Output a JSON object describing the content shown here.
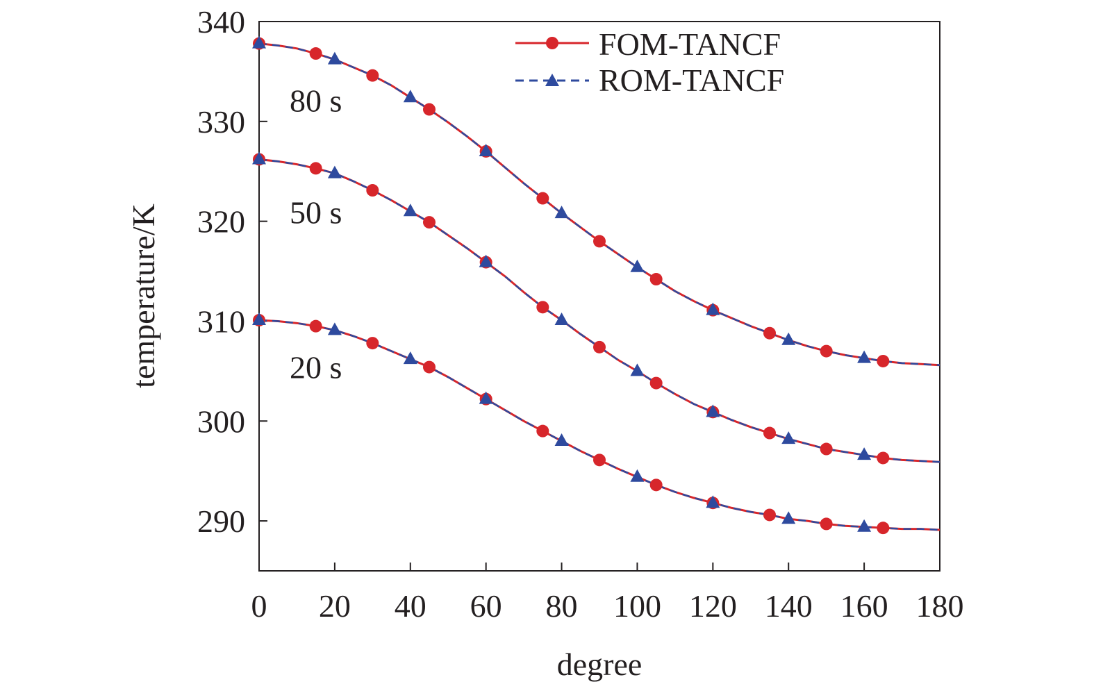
{
  "chart_data": {
    "type": "line",
    "xlabel": "degree",
    "ylabel": "temperature/K",
    "xlim": [
      0,
      180
    ],
    "ylim": [
      285,
      340
    ],
    "xticks": [
      "0",
      "20",
      "40",
      "60",
      "80",
      "100",
      "120",
      "140",
      "160",
      "180"
    ],
    "yticks": [
      "340",
      "330",
      "320",
      "310",
      "300",
      "290"
    ],
    "grid": false,
    "legend_position": "top-right",
    "colors": {
      "fom": "#d7262b",
      "rom": "#2e4a9e",
      "axis": "#231f20"
    },
    "annotations": [
      {
        "text": "80 s",
        "x": 15,
        "y": 331
      },
      {
        "text": "50 s",
        "x": 15,
        "y": 319.8
      },
      {
        "text": "20 s",
        "x": 15,
        "y": 304.3
      }
    ],
    "legend": [
      {
        "label": "FOM-TANCF",
        "marker": "circle",
        "line": "solid"
      },
      {
        "label": "ROM-TANCF",
        "marker": "triangle",
        "line": "dashed"
      }
    ],
    "curves": [
      {
        "time": "80 s",
        "x": [
          0,
          5,
          10,
          15,
          20,
          25,
          30,
          35,
          40,
          45,
          50,
          55,
          60,
          65,
          70,
          75,
          80,
          85,
          90,
          95,
          100,
          105,
          110,
          115,
          120,
          125,
          130,
          135,
          140,
          145,
          150,
          155,
          160,
          165,
          170,
          175,
          180
        ],
        "y": [
          337.8,
          337.6,
          337.3,
          336.8,
          336.2,
          335.4,
          334.6,
          333.6,
          332.4,
          331.2,
          329.9,
          328.5,
          327.0,
          325.4,
          323.8,
          322.3,
          320.8,
          319.4,
          318.0,
          316.7,
          315.4,
          314.2,
          313.0,
          312.0,
          311.1,
          310.3,
          309.5,
          308.8,
          308.1,
          307.5,
          307.0,
          306.6,
          306.3,
          306.0,
          305.8,
          305.7,
          305.6
        ]
      },
      {
        "time": "50 s",
        "x": [
          0,
          5,
          10,
          15,
          20,
          25,
          30,
          35,
          40,
          45,
          50,
          55,
          60,
          65,
          70,
          75,
          80,
          85,
          90,
          95,
          100,
          105,
          110,
          115,
          120,
          125,
          130,
          135,
          140,
          145,
          150,
          155,
          160,
          165,
          170,
          175,
          180
        ],
        "y": [
          326.2,
          326.0,
          325.7,
          325.3,
          324.8,
          324.0,
          323.1,
          322.1,
          321.0,
          319.9,
          318.6,
          317.3,
          315.9,
          314.5,
          312.9,
          311.4,
          310.1,
          308.7,
          307.4,
          306.1,
          305.0,
          303.8,
          302.7,
          301.7,
          300.9,
          300.1,
          299.4,
          298.8,
          298.2,
          297.7,
          297.2,
          296.9,
          296.6,
          296.3,
          296.1,
          296.0,
          295.9
        ]
      },
      {
        "time": "20 s",
        "x": [
          0,
          5,
          10,
          15,
          20,
          25,
          30,
          35,
          40,
          45,
          50,
          55,
          60,
          65,
          70,
          75,
          80,
          85,
          90,
          95,
          100,
          105,
          110,
          115,
          120,
          125,
          130,
          135,
          140,
          145,
          150,
          155,
          160,
          165,
          170,
          175,
          180
        ],
        "y": [
          310.1,
          310.0,
          309.8,
          309.5,
          309.1,
          308.5,
          307.8,
          307.0,
          306.2,
          305.4,
          304.4,
          303.3,
          302.2,
          301.1,
          300.0,
          299.0,
          298.0,
          297.0,
          296.1,
          295.2,
          294.4,
          293.6,
          292.9,
          292.3,
          291.8,
          291.3,
          290.9,
          290.6,
          290.2,
          290.0,
          289.7,
          289.5,
          289.4,
          289.3,
          289.2,
          289.2,
          289.1
        ]
      }
    ],
    "series": [
      {
        "name": "FOM-TANCF",
        "marker": "circle",
        "points": [
          [
            0,
            337.8
          ],
          [
            15,
            336.8
          ],
          [
            30,
            334.6
          ],
          [
            45,
            331.2
          ],
          [
            60,
            327.0
          ],
          [
            75,
            322.3
          ],
          [
            90,
            318.0
          ],
          [
            105,
            314.2
          ],
          [
            120,
            311.1
          ],
          [
            135,
            308.8
          ],
          [
            150,
            307.0
          ],
          [
            165,
            306.0
          ],
          [
            0,
            326.2
          ],
          [
            15,
            325.3
          ],
          [
            30,
            323.1
          ],
          [
            45,
            319.9
          ],
          [
            60,
            315.9
          ],
          [
            75,
            311.4
          ],
          [
            90,
            307.4
          ],
          [
            105,
            303.8
          ],
          [
            120,
            300.9
          ],
          [
            135,
            298.8
          ],
          [
            150,
            297.2
          ],
          [
            165,
            296.3
          ],
          [
            0,
            310.1
          ],
          [
            15,
            309.5
          ],
          [
            30,
            307.8
          ],
          [
            45,
            305.4
          ],
          [
            60,
            302.2
          ],
          [
            75,
            299.0
          ],
          [
            90,
            296.1
          ],
          [
            105,
            293.6
          ],
          [
            120,
            291.8
          ],
          [
            135,
            290.6
          ],
          [
            150,
            289.7
          ],
          [
            165,
            289.3
          ]
        ]
      },
      {
        "name": "ROM-TANCF",
        "marker": "triangle",
        "points": [
          [
            0,
            337.8
          ],
          [
            20,
            336.2
          ],
          [
            40,
            332.4
          ],
          [
            60,
            327.0
          ],
          [
            80,
            320.8
          ],
          [
            100,
            315.4
          ],
          [
            120,
            311.1
          ],
          [
            140,
            308.1
          ],
          [
            160,
            306.3
          ],
          [
            0,
            326.2
          ],
          [
            20,
            324.8
          ],
          [
            40,
            321.0
          ],
          [
            60,
            315.9
          ],
          [
            80,
            310.1
          ],
          [
            100,
            305.0
          ],
          [
            120,
            300.9
          ],
          [
            140,
            298.2
          ],
          [
            160,
            296.6
          ],
          [
            0,
            310.1
          ],
          [
            20,
            309.1
          ],
          [
            40,
            306.2
          ],
          [
            60,
            302.2
          ],
          [
            80,
            298.0
          ],
          [
            100,
            294.4
          ],
          [
            120,
            291.8
          ],
          [
            140,
            290.2
          ],
          [
            160,
            289.4
          ]
        ]
      }
    ]
  }
}
